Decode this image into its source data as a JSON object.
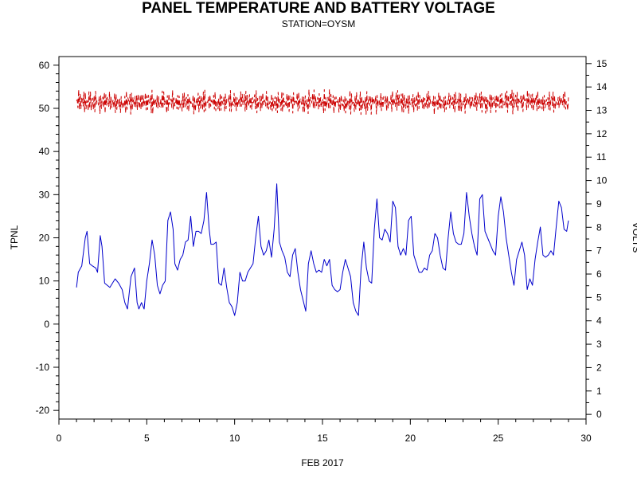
{
  "chart_data": {
    "type": "line",
    "title": "PANEL TEMPERATURE AND BATTERY VOLTAGE",
    "subtitle": "STATION=OYSM",
    "xlabel": "FEB 2017",
    "ylabel": "TPNL",
    "y2label": "VOLTS",
    "xlim": [
      0,
      30
    ],
    "ylim": [
      -22,
      62
    ],
    "y2lim": [
      -0.2,
      15.3
    ],
    "x_ticks": [
      0,
      5,
      10,
      15,
      20,
      25,
      30
    ],
    "y_ticks": [
      -20,
      -10,
      0,
      10,
      20,
      30,
      40,
      50,
      60
    ],
    "y2_ticks": [
      0,
      1,
      2,
      3,
      4,
      5,
      6,
      7,
      8,
      9,
      10,
      11,
      12,
      13,
      14,
      15
    ],
    "grid": false,
    "series": [
      {
        "axis": "left",
        "color": "#0000cc",
        "style": "solid",
        "x": [
          1.0,
          1.1,
          1.3,
          1.5,
          1.6,
          1.75,
          1.9,
          2.1,
          2.2,
          2.35,
          2.45,
          2.6,
          2.75,
          2.9,
          3.05,
          3.2,
          3.4,
          3.6,
          3.75,
          3.9,
          4.1,
          4.3,
          4.45,
          4.55,
          4.7,
          4.85,
          5.0,
          5.15,
          5.3,
          5.45,
          5.6,
          5.75,
          5.9,
          6.05,
          6.2,
          6.35,
          6.5,
          6.6,
          6.75,
          6.9,
          7.05,
          7.2,
          7.35,
          7.5,
          7.65,
          7.8,
          7.95,
          8.1,
          8.25,
          8.4,
          8.55,
          8.65,
          8.8,
          8.95,
          9.1,
          9.25,
          9.4,
          9.55,
          9.7,
          9.85,
          10.0,
          10.15,
          10.3,
          10.45,
          10.6,
          10.75,
          10.9,
          11.05,
          11.2,
          11.35,
          11.5,
          11.65,
          11.8,
          11.95,
          12.1,
          12.25,
          12.4,
          12.55,
          12.7,
          12.85,
          13.0,
          13.15,
          13.3,
          13.45,
          13.6,
          13.75,
          13.9,
          14.05,
          14.2,
          14.35,
          14.5,
          14.65,
          14.8,
          14.95,
          15.1,
          15.25,
          15.4,
          15.55,
          15.7,
          15.85,
          16.0,
          16.15,
          16.3,
          16.45,
          16.6,
          16.75,
          16.9,
          17.05,
          17.2,
          17.35,
          17.5,
          17.65,
          17.8,
          17.95,
          18.1,
          18.25,
          18.4,
          18.55,
          18.7,
          18.85,
          19.0,
          19.15,
          19.3,
          19.45,
          19.6,
          19.75,
          19.9,
          20.05,
          20.2,
          20.35,
          20.5,
          20.65,
          20.8,
          20.95,
          21.1,
          21.25,
          21.4,
          21.55,
          21.7,
          21.85,
          22.0,
          22.15,
          22.3,
          22.45,
          22.6,
          22.75,
          22.9,
          23.05,
          23.2,
          23.35,
          23.5,
          23.65,
          23.8,
          23.95,
          24.1,
          24.25,
          24.4,
          24.55,
          24.7,
          24.85,
          25.0,
          25.15,
          25.3,
          25.45,
          25.6,
          25.75,
          25.9,
          26.05,
          26.2,
          26.35,
          26.5,
          26.65,
          26.8,
          26.95,
          27.1,
          27.25,
          27.4,
          27.55,
          27.7,
          27.85,
          28.0,
          28.15,
          28.3,
          28.45,
          28.6,
          28.75,
          28.9,
          29.0
        ],
        "values": [
          8.5,
          12.0,
          13.5,
          20.0,
          21.5,
          14.0,
          13.5,
          13.0,
          12.0,
          20.5,
          18.0,
          9.5,
          9.0,
          8.5,
          9.5,
          10.5,
          9.5,
          8.0,
          5.0,
          3.5,
          11.0,
          13.0,
          5.0,
          3.5,
          5.0,
          3.5,
          10.0,
          14.0,
          19.5,
          16.0,
          9.0,
          7.0,
          9.0,
          10.0,
          24.0,
          26.0,
          22.0,
          14.0,
          12.5,
          15.0,
          16.0,
          19.0,
          19.5,
          25.0,
          18.0,
          21.5,
          21.5,
          21.0,
          24.0,
          30.5,
          22.0,
          18.5,
          18.5,
          19.0,
          9.5,
          9.0,
          13.0,
          8.5,
          5.0,
          4.0,
          2.0,
          5.0,
          12.0,
          10.0,
          10.0,
          12.0,
          13.0,
          14.0,
          20.0,
          25.0,
          18.0,
          16.0,
          17.0,
          19.5,
          15.5,
          22.0,
          32.5,
          19.0,
          17.0,
          15.5,
          12.0,
          11.0,
          16.0,
          17.5,
          12.0,
          8.0,
          5.5,
          3.0,
          14.0,
          17.0,
          14.0,
          12.0,
          12.5,
          12.0,
          15.0,
          13.5,
          15.0,
          9.0,
          8.0,
          7.5,
          8.0,
          12.0,
          15.0,
          13.0,
          11.0,
          5.0,
          3.0,
          2.0,
          13.0,
          19.0,
          13.0,
          10.0,
          9.5,
          22.0,
          29.0,
          20.0,
          19.5,
          22.0,
          21.0,
          19.0,
          28.5,
          27.0,
          18.0,
          16.0,
          17.5,
          16.0,
          24.0,
          25.0,
          16.0,
          14.0,
          12.0,
          12.0,
          13.0,
          12.5,
          16.0,
          17.0,
          21.0,
          20.0,
          16.0,
          13.0,
          12.5,
          20.0,
          26.0,
          21.0,
          19.0,
          18.5,
          18.5,
          21.0,
          30.5,
          25.0,
          21.0,
          18.0,
          16.0,
          29.0,
          30.0,
          21.5,
          20.0,
          18.5,
          17.0,
          16.0,
          25.0,
          29.5,
          26.0,
          20.0,
          16.0,
          12.0,
          9.0,
          15.0,
          17.0,
          19.0,
          16.0,
          8.0,
          10.5,
          9.0,
          15.0,
          19.0,
          22.5,
          16.0,
          15.5,
          16.0,
          17.0,
          16.0,
          22.5,
          28.5,
          27.0,
          22.0,
          21.5,
          24.0
        ]
      },
      {
        "axis": "right",
        "color": "#cc0000",
        "style": "dashed",
        "x_start": 1.0,
        "x_end": 29.0,
        "samples": 672,
        "v_min": 12.8,
        "v_max": 13.9
      }
    ]
  }
}
